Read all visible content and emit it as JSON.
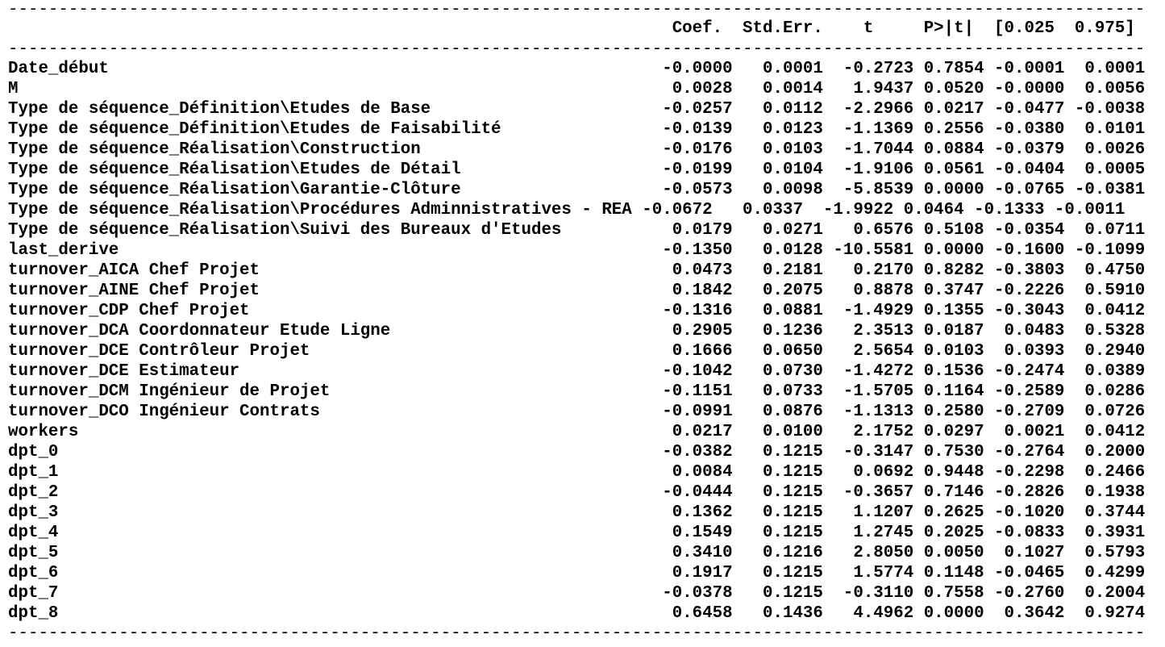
{
  "separator": "----------------------------------------------------------------------------------------------------------------------------------",
  "header": {
    "line": "                                                                  Coef.  Std.Err.    t     P>|t|  [0.025  0.975]"
  },
  "rows": [
    {
      "line": "Date_début                                                       -0.0000   0.0001  -0.2723 0.7854 -0.0001  0.0001"
    },
    {
      "line": "M                                                                 0.0028   0.0014   1.9437 0.0520 -0.0000  0.0056"
    },
    {
      "line": "Type de séquence_Définition\\Etudes de Base                       -0.0257   0.0112  -2.2966 0.0217 -0.0477 -0.0038"
    },
    {
      "line": "Type de séquence_Définition\\Etudes de Faisabilité                -0.0139   0.0123  -1.1369 0.2556 -0.0380  0.0101"
    },
    {
      "line": "Type de séquence_Réalisation\\Construction                        -0.0176   0.0103  -1.7044 0.0884 -0.0379  0.0026"
    },
    {
      "line": "Type de séquence_Réalisation\\Etudes de Détail                    -0.0199   0.0104  -1.9106 0.0561 -0.0404  0.0005"
    },
    {
      "line": "Type de séquence_Réalisation\\Garantie-Clôture                    -0.0573   0.0098  -5.8539 0.0000 -0.0765 -0.0381"
    },
    {
      "line": "Type de séquence_Réalisation\\Procédures Adminnistratives - REA -0.0672   0.0337  -1.9922 0.0464 -0.1333 -0.0011"
    },
    {
      "line": "Type de séquence_Réalisation\\Suivi des Bureaux d'Etudes           0.0179   0.0271   0.6576 0.5108 -0.0354  0.0711"
    },
    {
      "line": "last_derive                                                      -0.1350   0.0128 -10.5581 0.0000 -0.1600 -0.1099"
    },
    {
      "line": "turnover_AICA Chef Projet                                         0.0473   0.2181   0.2170 0.8282 -0.3803  0.4750"
    },
    {
      "line": "turnover_AINE Chef Projet                                         0.1842   0.2075   0.8878 0.3747 -0.2226  0.5910"
    },
    {
      "line": "turnover_CDP Chef Projet                                         -0.1316   0.0881  -1.4929 0.1355 -0.3043  0.0412"
    },
    {
      "line": "turnover_DCA Coordonnateur Etude Ligne                            0.2905   0.1236   2.3513 0.0187  0.0483  0.5328"
    },
    {
      "line": "turnover_DCE Contrôleur Projet                                    0.1666   0.0650   2.5654 0.0103  0.0393  0.2940"
    },
    {
      "line": "turnover_DCE Estimateur                                          -0.1042   0.0730  -1.4272 0.1536 -0.2474  0.0389"
    },
    {
      "line": "turnover_DCM Ingénieur de Projet                                 -0.1151   0.0733  -1.5705 0.1164 -0.2589  0.0286"
    },
    {
      "line": "turnover_DCO Ingénieur Contrats                                  -0.0991   0.0876  -1.1313 0.2580 -0.2709  0.0726"
    },
    {
      "line": "workers                                                           0.0217   0.0100   2.1752 0.0297  0.0021  0.0412"
    },
    {
      "line": "dpt_0                                                            -0.0382   0.1215  -0.3147 0.7530 -0.2764  0.2000"
    },
    {
      "line": "dpt_1                                                             0.0084   0.1215   0.0692 0.9448 -0.2298  0.2466"
    },
    {
      "line": "dpt_2                                                            -0.0444   0.1215  -0.3657 0.7146 -0.2826  0.1938"
    },
    {
      "line": "dpt_3                                                             0.1362   0.1215   1.1207 0.2625 -0.1020  0.3744"
    },
    {
      "line": "dpt_4                                                             0.1549   0.1215   1.2745 0.2025 -0.0833  0.3931"
    },
    {
      "line": "dpt_5                                                             0.3410   0.1216   2.8050 0.0050  0.1027  0.5793"
    },
    {
      "line": "dpt_6                                                             0.1917   0.1215   1.5774 0.1148 -0.0465  0.4299"
    },
    {
      "line": "dpt_7                                                            -0.0378   0.1215  -0.3110 0.7558 -0.2760  0.2004"
    },
    {
      "line": "dpt_8                                                             0.6458   0.1436   4.4962 0.0000  0.3642  0.9274"
    }
  ]
}
